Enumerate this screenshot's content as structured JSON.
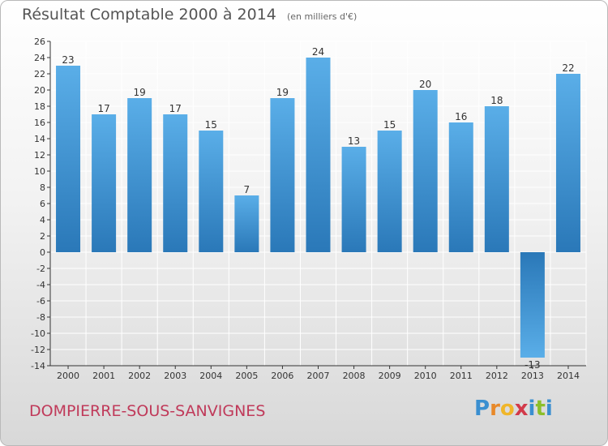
{
  "header": {
    "title": "Résultat Comptable 2000 à 2014",
    "subtitle": "(en milliers d'€)"
  },
  "footer": {
    "commune": "DOMPIERRE-SOUS-SANVIGNES",
    "brand": "Proxiti",
    "brand_letters": [
      {
        "char": "P",
        "color": "#3a8fd0"
      },
      {
        "char": "r",
        "color": "#e8892a"
      },
      {
        "char": "o",
        "color": "#f0b62a"
      },
      {
        "char": "x",
        "color": "#d23a4a"
      },
      {
        "char": "i",
        "color": "#3a8fd0"
      },
      {
        "char": "t",
        "color": "#8cbf2a"
      },
      {
        "char": "i",
        "color": "#3a8fd0"
      }
    ]
  },
  "colors": {
    "bar_light": "#5aaee8",
    "bar_dark": "#2a78b8",
    "grid": "#ffffff",
    "axis": "#333333",
    "text": "#333333"
  },
  "chart_data": {
    "type": "bar",
    "categories": [
      "2000",
      "2001",
      "2002",
      "2003",
      "2004",
      "2005",
      "2006",
      "2007",
      "2008",
      "2009",
      "2010",
      "2011",
      "2012",
      "2013",
      "2014"
    ],
    "values": [
      23,
      17,
      19,
      17,
      15,
      7,
      19,
      24,
      13,
      15,
      20,
      16,
      18,
      -13,
      22
    ],
    "ylim": [
      -14,
      26
    ],
    "ytick_step": 2,
    "grid": true,
    "legend": "none"
  }
}
